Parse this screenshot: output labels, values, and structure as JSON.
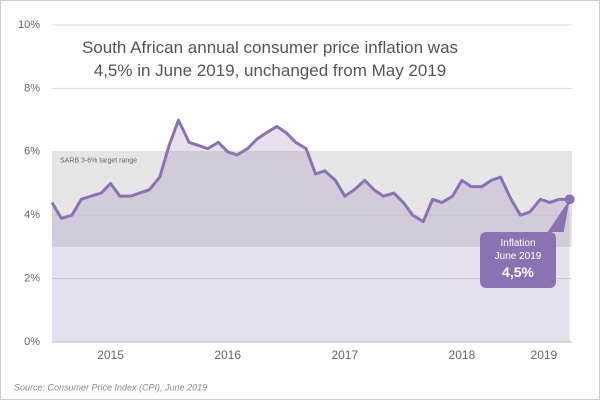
{
  "chart_data": {
    "type": "line",
    "title": "South African annual consumer price inflation was 4,5% in June 2019, unchanged from May 2019",
    "x": [
      2015,
      2015.08,
      2015.17,
      2015.25,
      2015.33,
      2015.42,
      2015.5,
      2015.58,
      2015.67,
      2015.75,
      2015.83,
      2015.92,
      2016,
      2016.08,
      2016.17,
      2016.25,
      2016.33,
      2016.42,
      2016.5,
      2016.58,
      2016.67,
      2016.75,
      2016.83,
      2016.92,
      2017,
      2017.08,
      2017.17,
      2017.25,
      2017.33,
      2017.42,
      2017.5,
      2017.58,
      2017.67,
      2017.75,
      2017.83,
      2017.92,
      2018,
      2018.08,
      2018.17,
      2018.25,
      2018.33,
      2018.42,
      2018.5,
      2018.58,
      2018.67,
      2018.75,
      2018.83,
      2018.92,
      2019,
      2019.08,
      2019.17,
      2019.25,
      2019.33,
      2019.42
    ],
    "values": [
      4.4,
      3.9,
      4.0,
      4.5,
      4.6,
      4.7,
      5.0,
      4.6,
      4.6,
      4.7,
      4.8,
      5.2,
      6.2,
      7.0,
      6.3,
      6.2,
      6.1,
      6.3,
      6.0,
      5.9,
      6.1,
      6.4,
      6.6,
      6.8,
      6.6,
      6.3,
      6.1,
      5.3,
      5.4,
      5.1,
      4.6,
      4.8,
      5.1,
      4.8,
      4.6,
      4.7,
      4.4,
      4.0,
      3.8,
      4.5,
      4.4,
      4.6,
      5.1,
      4.9,
      4.9,
      5.1,
      5.2,
      4.5,
      4.0,
      4.1,
      4.5,
      4.4,
      4.5,
      4.5
    ],
    "value_labels": [
      null,
      null,
      null,
      null,
      null,
      null,
      null,
      null,
      null,
      null,
      null,
      null,
      null,
      null,
      null,
      null,
      null,
      null,
      null,
      null,
      null,
      null,
      null,
      null,
      null,
      null,
      null,
      null,
      null,
      null,
      null,
      null,
      null,
      null,
      null,
      null,
      null,
      null,
      null,
      null,
      null,
      null,
      null,
      null,
      null,
      null,
      null,
      null,
      null,
      null,
      null,
      null,
      null,
      "4,5%"
    ],
    "callout": "Inflation June 2019",
    "color": "#8b72b3",
    "target_range": [
      3,
      6
    ],
    "target_range_label": "SARB 3-6% target range",
    "xlim": [
      2015,
      2019.44
    ],
    "xticks": [
      {
        "value": 2015.5,
        "label": "2015"
      },
      {
        "value": 2016.5,
        "label": "2016"
      },
      {
        "value": 2017.5,
        "label": "2017"
      },
      {
        "value": 2018.5,
        "label": "2018"
      },
      {
        "value": 2019.2,
        "label": "2019"
      }
    ],
    "ylim": [
      0,
      10
    ],
    "yticks": [
      {
        "value": 0,
        "label": "0%"
      },
      {
        "value": 2,
        "label": "2%"
      },
      {
        "value": 4,
        "label": "4%"
      },
      {
        "value": 6,
        "label": "6%"
      },
      {
        "value": 8,
        "label": "8%"
      },
      {
        "value": 10,
        "label": "10%"
      }
    ],
    "grid": true,
    "source": "Source: Consumer Price Index (CPI), June 2019"
  }
}
